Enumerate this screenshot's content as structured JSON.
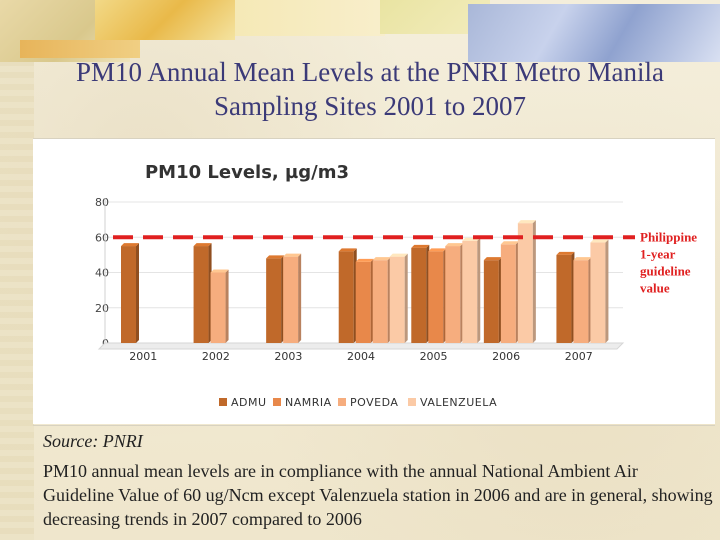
{
  "slide": {
    "title": "PM10 Annual Mean Levels at the PNRI Metro Manila Sampling Sites 2001 to 2007",
    "source": "Source: PNRI",
    "note": "PM10 annual mean levels are in compliance with the annual National Ambient Air Guideline Value of 60 ug/Ncm except Valenzuela station in 2006 and are in general, showing decreasing trends in 2007 compared to 2006"
  },
  "chart_data": {
    "type": "bar",
    "title": "PM10 Levels, µg/m3",
    "categories": [
      "2001",
      "2002",
      "2003",
      "2004",
      "2005",
      "2006",
      "2007"
    ],
    "series": [
      {
        "name": "ADMU",
        "color": "#c0692a",
        "values": [
          55,
          55,
          48,
          52,
          54,
          47,
          50
        ]
      },
      {
        "name": "NAMRIA",
        "color": "#e8884a",
        "values": [
          null,
          null,
          null,
          46,
          52,
          null,
          null
        ]
      },
      {
        "name": "POVEDA",
        "color": "#f6ad7e",
        "values": [
          null,
          40,
          49,
          47,
          55,
          56,
          47
        ]
      },
      {
        "name": "VALENZUELA",
        "color": "#fbcaa6",
        "values": [
          null,
          null,
          null,
          49,
          58,
          68,
          57
        ]
      }
    ],
    "ylim": [
      0,
      80
    ],
    "yticks": [
      0,
      20,
      40,
      60,
      80
    ],
    "guideline": {
      "value": 60,
      "label_lines": [
        "Philippine",
        "1-year",
        "guideline",
        "value"
      ],
      "color": "#e02020"
    },
    "legend_position": "bottom"
  }
}
